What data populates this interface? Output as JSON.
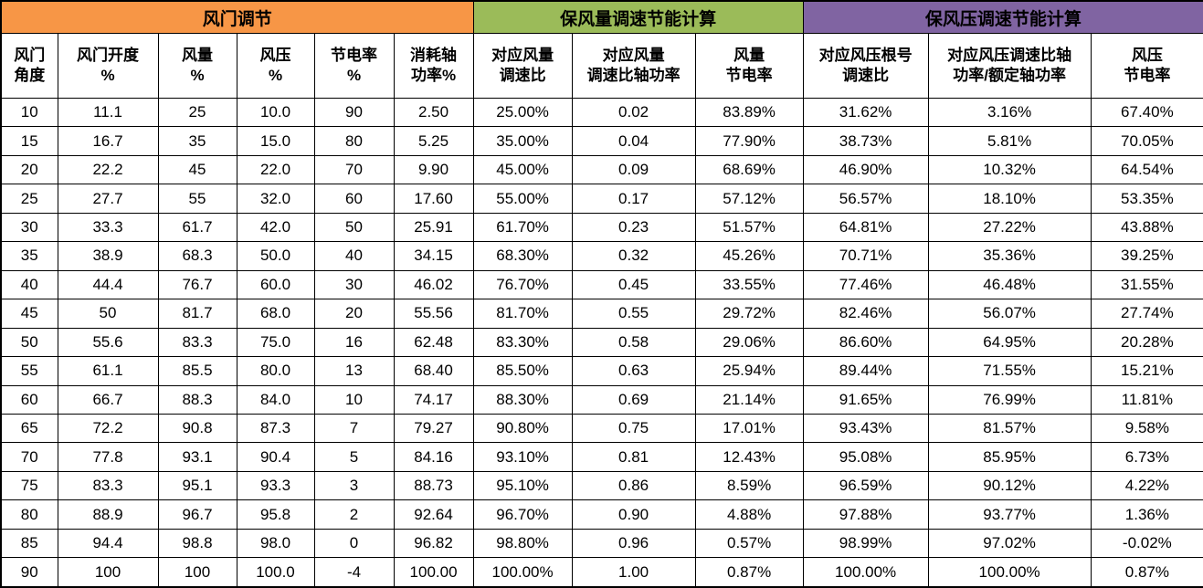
{
  "colors": {
    "damper_section_bg": "#F79646",
    "airflow_section_bg": "#9BBB59",
    "pressure_section_bg": "#8064A2",
    "border": "#000000",
    "text": "#000000",
    "cell_bg": "#FFFFFF"
  },
  "table": {
    "sections": [
      {
        "title": "风门调节",
        "colspan": 6,
        "bg": "#F79646"
      },
      {
        "title": "保风量调速节能计算",
        "colspan": 3,
        "bg": "#9BBB59"
      },
      {
        "title": "保风压调速节能计算",
        "colspan": 3,
        "bg": "#8064A2"
      }
    ],
    "columns": [
      {
        "line1": "风门",
        "line2": "角度"
      },
      {
        "line1": "风门开度",
        "line2": "%"
      },
      {
        "line1": "风量",
        "line2": "%"
      },
      {
        "line1": "风压",
        "line2": "%"
      },
      {
        "line1": "节电率",
        "line2": "%"
      },
      {
        "line1": "消耗轴",
        "line2": "功率%"
      },
      {
        "line1": "对应风量",
        "line2": "调速比"
      },
      {
        "line1": "对应风量",
        "line2": "调速比轴功率"
      },
      {
        "line1": "风量",
        "line2": "节电率"
      },
      {
        "line1": "对应风压根号",
        "line2": "调速比"
      },
      {
        "line1": "对应风压调速比轴",
        "line2": "功率/额定轴功率"
      },
      {
        "line1": "风压",
        "line2": "节电率"
      }
    ],
    "rows": [
      [
        "10",
        "11.1",
        "25",
        "10.0",
        "90",
        "2.50",
        "25.00%",
        "0.02",
        "83.89%",
        "31.62%",
        "3.16%",
        "67.40%"
      ],
      [
        "15",
        "16.7",
        "35",
        "15.0",
        "80",
        "5.25",
        "35.00%",
        "0.04",
        "77.90%",
        "38.73%",
        "5.81%",
        "70.05%"
      ],
      [
        "20",
        "22.2",
        "45",
        "22.0",
        "70",
        "9.90",
        "45.00%",
        "0.09",
        "68.69%",
        "46.90%",
        "10.32%",
        "64.54%"
      ],
      [
        "25",
        "27.7",
        "55",
        "32.0",
        "60",
        "17.60",
        "55.00%",
        "0.17",
        "57.12%",
        "56.57%",
        "18.10%",
        "53.35%"
      ],
      [
        "30",
        "33.3",
        "61.7",
        "42.0",
        "50",
        "25.91",
        "61.70%",
        "0.23",
        "51.57%",
        "64.81%",
        "27.22%",
        "43.88%"
      ],
      [
        "35",
        "38.9",
        "68.3",
        "50.0",
        "40",
        "34.15",
        "68.30%",
        "0.32",
        "45.26%",
        "70.71%",
        "35.36%",
        "39.25%"
      ],
      [
        "40",
        "44.4",
        "76.7",
        "60.0",
        "30",
        "46.02",
        "76.70%",
        "0.45",
        "33.55%",
        "77.46%",
        "46.48%",
        "31.55%"
      ],
      [
        "45",
        "50",
        "81.7",
        "68.0",
        "20",
        "55.56",
        "81.70%",
        "0.55",
        "29.72%",
        "82.46%",
        "56.07%",
        "27.74%"
      ],
      [
        "50",
        "55.6",
        "83.3",
        "75.0",
        "16",
        "62.48",
        "83.30%",
        "0.58",
        "29.06%",
        "86.60%",
        "64.95%",
        "20.28%"
      ],
      [
        "55",
        "61.1",
        "85.5",
        "80.0",
        "13",
        "68.40",
        "85.50%",
        "0.63",
        "25.94%",
        "89.44%",
        "71.55%",
        "15.21%"
      ],
      [
        "60",
        "66.7",
        "88.3",
        "84.0",
        "10",
        "74.17",
        "88.30%",
        "0.69",
        "21.14%",
        "91.65%",
        "76.99%",
        "11.81%"
      ],
      [
        "65",
        "72.2",
        "90.8",
        "87.3",
        "7",
        "79.27",
        "90.80%",
        "0.75",
        "17.01%",
        "93.43%",
        "81.57%",
        "9.58%"
      ],
      [
        "70",
        "77.8",
        "93.1",
        "90.4",
        "5",
        "84.16",
        "93.10%",
        "0.81",
        "12.43%",
        "95.08%",
        "85.95%",
        "6.73%"
      ],
      [
        "75",
        "83.3",
        "95.1",
        "93.3",
        "3",
        "88.73",
        "95.10%",
        "0.86",
        "8.59%",
        "96.59%",
        "90.12%",
        "4.22%"
      ],
      [
        "80",
        "88.9",
        "96.7",
        "95.8",
        "2",
        "92.64",
        "96.70%",
        "0.90",
        "4.88%",
        "97.88%",
        "93.77%",
        "1.36%"
      ],
      [
        "85",
        "94.4",
        "98.8",
        "98.0",
        "0",
        "96.82",
        "98.80%",
        "0.96",
        "0.57%",
        "98.99%",
        "97.02%",
        "-0.02%"
      ],
      [
        "90",
        "100",
        "100",
        "100.0",
        "-4",
        "100.00",
        "100.00%",
        "1.00",
        "0.87%",
        "100.00%",
        "100.00%",
        "0.87%"
      ]
    ]
  }
}
